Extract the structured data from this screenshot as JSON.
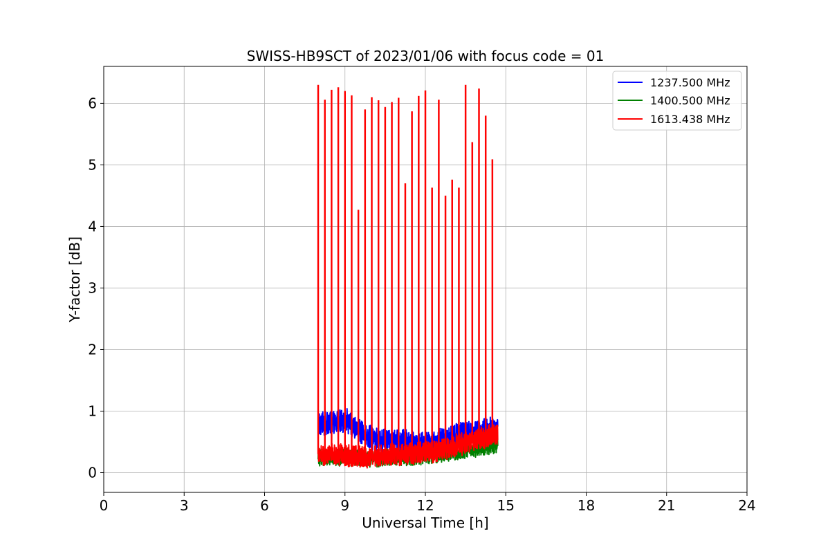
{
  "chart_data": {
    "type": "line",
    "title": "SWISS-HB9SCT of 2023/01/06 with focus code = 01",
    "xlabel": "Universal Time [h]",
    "ylabel": "Y-factor [dB]",
    "xlim": [
      0,
      24
    ],
    "ylim": [
      -0.32,
      6.6
    ],
    "xticks": [
      0,
      3,
      6,
      9,
      12,
      15,
      18,
      21,
      24
    ],
    "yticks": [
      0,
      1,
      2,
      3,
      4,
      5,
      6
    ],
    "grid": true,
    "legend_position": "top-right",
    "series": [
      {
        "name": "1237.500 MHz",
        "color": "#0000ff",
        "baseline": [
          [
            8.0,
            0.78
          ],
          [
            8.5,
            0.82
          ],
          [
            9.0,
            0.85
          ],
          [
            9.5,
            0.7
          ],
          [
            10.0,
            0.55
          ],
          [
            10.5,
            0.52
          ],
          [
            11.0,
            0.5
          ],
          [
            11.5,
            0.48
          ],
          [
            12.0,
            0.45
          ],
          [
            12.5,
            0.5
          ],
          [
            13.0,
            0.58
          ],
          [
            13.5,
            0.63
          ],
          [
            14.0,
            0.67
          ],
          [
            14.7,
            0.7
          ]
        ],
        "noise": 0.18
      },
      {
        "name": "1400.500 MHz",
        "color": "#008000",
        "baseline": [
          [
            8.0,
            0.25
          ],
          [
            9.0,
            0.25
          ],
          [
            10.0,
            0.23
          ],
          [
            11.0,
            0.25
          ],
          [
            12.0,
            0.27
          ],
          [
            13.0,
            0.32
          ],
          [
            14.0,
            0.4
          ],
          [
            14.7,
            0.45
          ]
        ],
        "noise": 0.12
      },
      {
        "name": "1613.438 MHz",
        "color": "#ff0000",
        "baseline": [
          [
            8.0,
            0.3
          ],
          [
            9.0,
            0.28
          ],
          [
            10.0,
            0.25
          ],
          [
            11.0,
            0.3
          ],
          [
            12.0,
            0.32
          ],
          [
            13.0,
            0.42
          ],
          [
            14.0,
            0.55
          ],
          [
            14.7,
            0.62
          ]
        ],
        "noise": 0.16,
        "peaks": [
          [
            8.0,
            6.3
          ],
          [
            8.25,
            6.06
          ],
          [
            8.5,
            6.22
          ],
          [
            8.75,
            6.26
          ],
          [
            9.0,
            6.2
          ],
          [
            9.25,
            6.13
          ],
          [
            9.5,
            4.27
          ],
          [
            9.75,
            5.9
          ],
          [
            10.0,
            6.1
          ],
          [
            10.25,
            6.05
          ],
          [
            10.5,
            5.94
          ],
          [
            10.75,
            6.02
          ],
          [
            11.0,
            6.09
          ],
          [
            11.25,
            4.7
          ],
          [
            11.5,
            5.87
          ],
          [
            11.75,
            6.12
          ],
          [
            12.0,
            6.21
          ],
          [
            12.25,
            4.63
          ],
          [
            12.5,
            6.06
          ],
          [
            12.75,
            4.5
          ],
          [
            13.0,
            4.76
          ],
          [
            13.25,
            4.63
          ],
          [
            13.5,
            6.3
          ],
          [
            13.75,
            5.37
          ],
          [
            14.0,
            6.24
          ],
          [
            14.25,
            5.8
          ],
          [
            14.5,
            5.09
          ]
        ]
      }
    ]
  }
}
